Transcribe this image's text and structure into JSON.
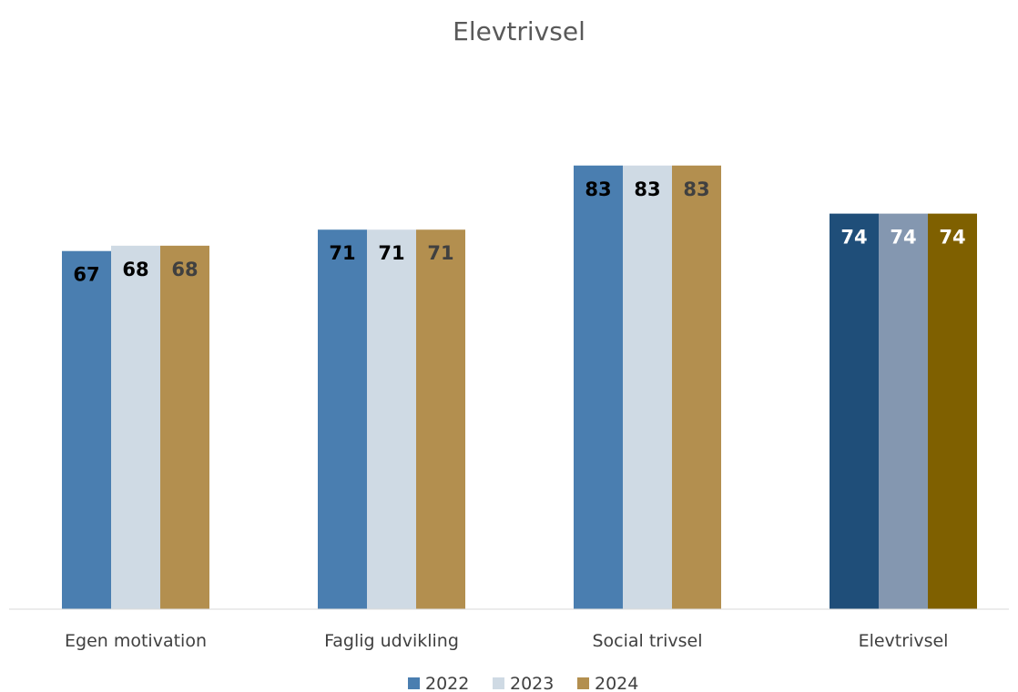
{
  "chart_data": {
    "type": "bar",
    "title": "Elevtrivsel",
    "categories": [
      "Egen motivation",
      "Faglig udvikling",
      "Social trivsel",
      "Elevtrivsel"
    ],
    "series": [
      {
        "name": "2022",
        "values": [
          67,
          71,
          83,
          74
        ],
        "color": "#4a7eb0"
      },
      {
        "name": "2023",
        "values": [
          68,
          71,
          83,
          74
        ],
        "color": "#cfdae4"
      },
      {
        "name": "2024",
        "values": [
          68,
          71,
          83,
          74
        ],
        "color": "#b38f4f"
      }
    ],
    "highlight_category": "Elevtrivsel",
    "highlight_colors": [
      "#1f4e79",
      "#8497b0",
      "#7f6000"
    ],
    "label_colors": {
      "default": [
        "#000000",
        "#000000",
        "#404040"
      ],
      "highlight": [
        "#ffffff",
        "#ffffff",
        "#ffffff"
      ]
    },
    "xlabel": "",
    "ylabel": "",
    "ylim": [
      0,
      100
    ],
    "grid": false,
    "legend": "bottom-center"
  }
}
